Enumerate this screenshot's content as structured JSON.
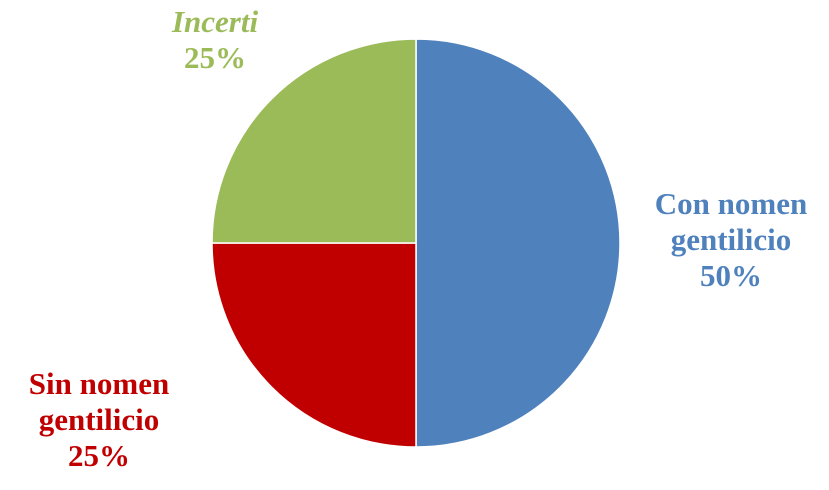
{
  "chart_data": {
    "type": "pie",
    "slices": [
      {
        "label": "Con nomen gentilicio",
        "label_lines": [
          "Con nomen",
          "gentilicio"
        ],
        "value": 50,
        "value_label": "50%",
        "color": "#4f81bd",
        "label_italic": false
      },
      {
        "label": "Sin nomen gentilicio",
        "label_lines": [
          "Sin nomen",
          "gentilicio"
        ],
        "value": 25,
        "value_label": "25%",
        "color": "#c00000",
        "label_italic": false
      },
      {
        "label": "Incerti",
        "label_lines": [
          "Incerti"
        ],
        "value": 25,
        "value_label": "25%",
        "color": "#9bbb59",
        "label_italic": true
      }
    ],
    "start_angle": "12 o'clock, clockwise",
    "title": "",
    "legend": "none"
  }
}
